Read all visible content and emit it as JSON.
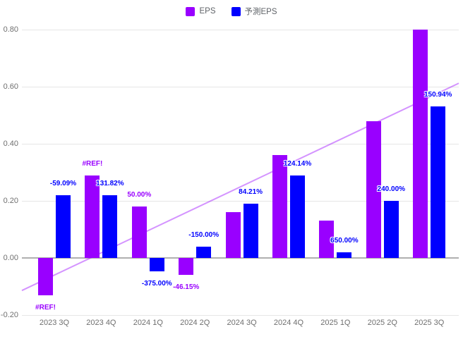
{
  "legend": {
    "items": [
      {
        "label": "EPS",
        "color": "#9900ff"
      },
      {
        "label": "予測EPS",
        "color": "#0000ff"
      }
    ]
  },
  "chart_data": {
    "type": "bar",
    "title": "",
    "categories": [
      "2023 3Q",
      "2023 4Q",
      "2024 1Q",
      "2024 2Q",
      "2024 3Q",
      "2024 4Q",
      "2025 1Q",
      "2025 2Q",
      "2025 3Q"
    ],
    "series": [
      {
        "name": "EPS",
        "color": "#9900ff",
        "values": [
          -0.13,
          0.29,
          0.18,
          -0.06,
          0.16,
          0.36,
          0.13,
          0.48,
          0.8
        ],
        "data_labels": [
          "#REF!",
          "#REF!",
          "50.00%",
          "-46.15%",
          "",
          "",
          "",
          "",
          ""
        ]
      },
      {
        "name": "予測EPS",
        "color": "#0000ff",
        "values": [
          0.22,
          0.22,
          -0.048,
          0.04,
          0.19,
          0.29,
          0.02,
          0.2,
          0.53
        ],
        "data_labels": [
          "-59.09%",
          "131.82%",
          "-375.00%",
          "-150.00%",
          "84.21%",
          "124.14%",
          "650.00%",
          "240.00%",
          "150.94%"
        ]
      }
    ],
    "y_axis": {
      "range": [
        -0.2,
        0.8
      ],
      "ticks": [
        {
          "value": 0.8,
          "label": "0.80"
        },
        {
          "value": 0.6,
          "label": "0.60"
        },
        {
          "value": 0.4,
          "label": "0.40"
        },
        {
          "value": 0.2,
          "label": "0.20"
        },
        {
          "value": 0.0,
          "label": "0.00"
        },
        {
          "value": -0.2,
          "label": "-0.20"
        }
      ]
    },
    "trendline": {
      "series": "EPS",
      "color": "rgba(153,0,255,0.42)",
      "start_value": -0.114,
      "end_value": 0.612
    },
    "grid": true,
    "legend_position": "top",
    "colors": {
      "grid": "#e6e6e6",
      "baseline": "#b0b0b0",
      "axis_text": "#6f6f6f"
    }
  }
}
